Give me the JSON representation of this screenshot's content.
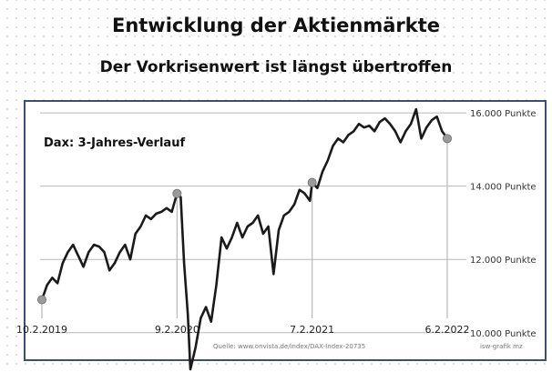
{
  "header": {
    "title": "Entwicklung der Aktienmärkte",
    "subtitle": "Der Vorkrisenwert ist längst übertroffen"
  },
  "chart_data": {
    "type": "line",
    "title": "Dax: 3-Jahres-Verlauf",
    "xlabel": "",
    "ylabel": "",
    "ylim": [
      9200,
      16500
    ],
    "y_ticks": [
      {
        "value": 10000,
        "label": "10.000 Punkte"
      },
      {
        "value": 12000,
        "label": "12.000 Punkte"
      },
      {
        "value": 14000,
        "label": "14.000 Punkte"
      },
      {
        "value": 16000,
        "label": "16.000 Punkte"
      }
    ],
    "grid": true,
    "x_range": [
      "2019-02-10",
      "2022-02-06"
    ],
    "markers": [
      {
        "date": "2019-02-10",
        "label": "10.2.2019",
        "value": 10900
      },
      {
        "date": "2020-02-09",
        "label": "9.2.2020",
        "value": 13800
      },
      {
        "date": "2021-02-07",
        "label": "7.2.2021",
        "value": 14100
      },
      {
        "date": "2022-02-06",
        "label": "6.2.2022",
        "value": 15300
      }
    ],
    "series": [
      {
        "values": [
          [
            "2019-02-10",
            10900
          ],
          [
            "2019-02-24",
            11300
          ],
          [
            "2019-03-10",
            11500
          ],
          [
            "2019-03-24",
            11350
          ],
          [
            "2019-04-07",
            11900
          ],
          [
            "2019-04-21",
            12200
          ],
          [
            "2019-05-05",
            12400
          ],
          [
            "2019-05-19",
            12100
          ],
          [
            "2019-06-02",
            11800
          ],
          [
            "2019-06-16",
            12200
          ],
          [
            "2019-06-30",
            12400
          ],
          [
            "2019-07-14",
            12350
          ],
          [
            "2019-07-28",
            12200
          ],
          [
            "2019-08-11",
            11700
          ],
          [
            "2019-08-25",
            11900
          ],
          [
            "2019-09-08",
            12200
          ],
          [
            "2019-09-22",
            12400
          ],
          [
            "2019-10-06",
            12000
          ],
          [
            "2019-10-20",
            12700
          ],
          [
            "2019-11-03",
            12900
          ],
          [
            "2019-11-17",
            13200
          ],
          [
            "2019-12-01",
            13100
          ],
          [
            "2019-12-15",
            13250
          ],
          [
            "2019-12-29",
            13300
          ],
          [
            "2020-01-12",
            13400
          ],
          [
            "2020-01-26",
            13300
          ],
          [
            "2020-02-09",
            13800
          ],
          [
            "2020-02-19",
            13700
          ],
          [
            "2020-02-28",
            11900
          ],
          [
            "2020-03-09",
            10500
          ],
          [
            "2020-03-16",
            9000
          ],
          [
            "2020-03-30",
            9600
          ],
          [
            "2020-04-13",
            10400
          ],
          [
            "2020-04-27",
            10700
          ],
          [
            "2020-05-11",
            10300
          ],
          [
            "2020-05-25",
            11300
          ],
          [
            "2020-06-08",
            12600
          ],
          [
            "2020-06-22",
            12300
          ],
          [
            "2020-07-06",
            12600
          ],
          [
            "2020-07-20",
            13000
          ],
          [
            "2020-08-03",
            12600
          ],
          [
            "2020-08-17",
            12900
          ],
          [
            "2020-08-31",
            13000
          ],
          [
            "2020-09-14",
            13200
          ],
          [
            "2020-09-28",
            12700
          ],
          [
            "2020-10-12",
            12900
          ],
          [
            "2020-10-26",
            11600
          ],
          [
            "2020-11-09",
            12800
          ],
          [
            "2020-11-23",
            13200
          ],
          [
            "2020-12-07",
            13300
          ],
          [
            "2020-12-21",
            13500
          ],
          [
            "2021-01-04",
            13900
          ],
          [
            "2021-01-18",
            13800
          ],
          [
            "2021-02-01",
            13600
          ],
          [
            "2021-02-07",
            14100
          ],
          [
            "2021-02-21",
            13950
          ],
          [
            "2021-03-07",
            14400
          ],
          [
            "2021-03-21",
            14700
          ],
          [
            "2021-04-04",
            15100
          ],
          [
            "2021-04-18",
            15300
          ],
          [
            "2021-05-02",
            15200
          ],
          [
            "2021-05-16",
            15400
          ],
          [
            "2021-05-30",
            15500
          ],
          [
            "2021-06-13",
            15700
          ],
          [
            "2021-06-27",
            15600
          ],
          [
            "2021-07-11",
            15650
          ],
          [
            "2021-07-25",
            15500
          ],
          [
            "2021-08-08",
            15750
          ],
          [
            "2021-08-22",
            15850
          ],
          [
            "2021-09-05",
            15700
          ],
          [
            "2021-09-19",
            15500
          ],
          [
            "2021-10-03",
            15200
          ],
          [
            "2021-10-17",
            15500
          ],
          [
            "2021-10-31",
            15700
          ],
          [
            "2021-11-14",
            16100
          ],
          [
            "2021-11-28",
            15300
          ],
          [
            "2021-12-12",
            15600
          ],
          [
            "2021-12-26",
            15800
          ],
          [
            "2022-01-09",
            15900
          ],
          [
            "2022-01-23",
            15500
          ],
          [
            "2022-02-06",
            15300
          ]
        ]
      }
    ],
    "source": "Quelle: www.onvista.de/index/DAX-Index-20735",
    "credit": "isw-grafik mz"
  },
  "colors": {
    "line": "#1a1a1a",
    "marker": "#9a9a9a",
    "grid": "#b8b8b8",
    "frame": "#3c4f73"
  }
}
